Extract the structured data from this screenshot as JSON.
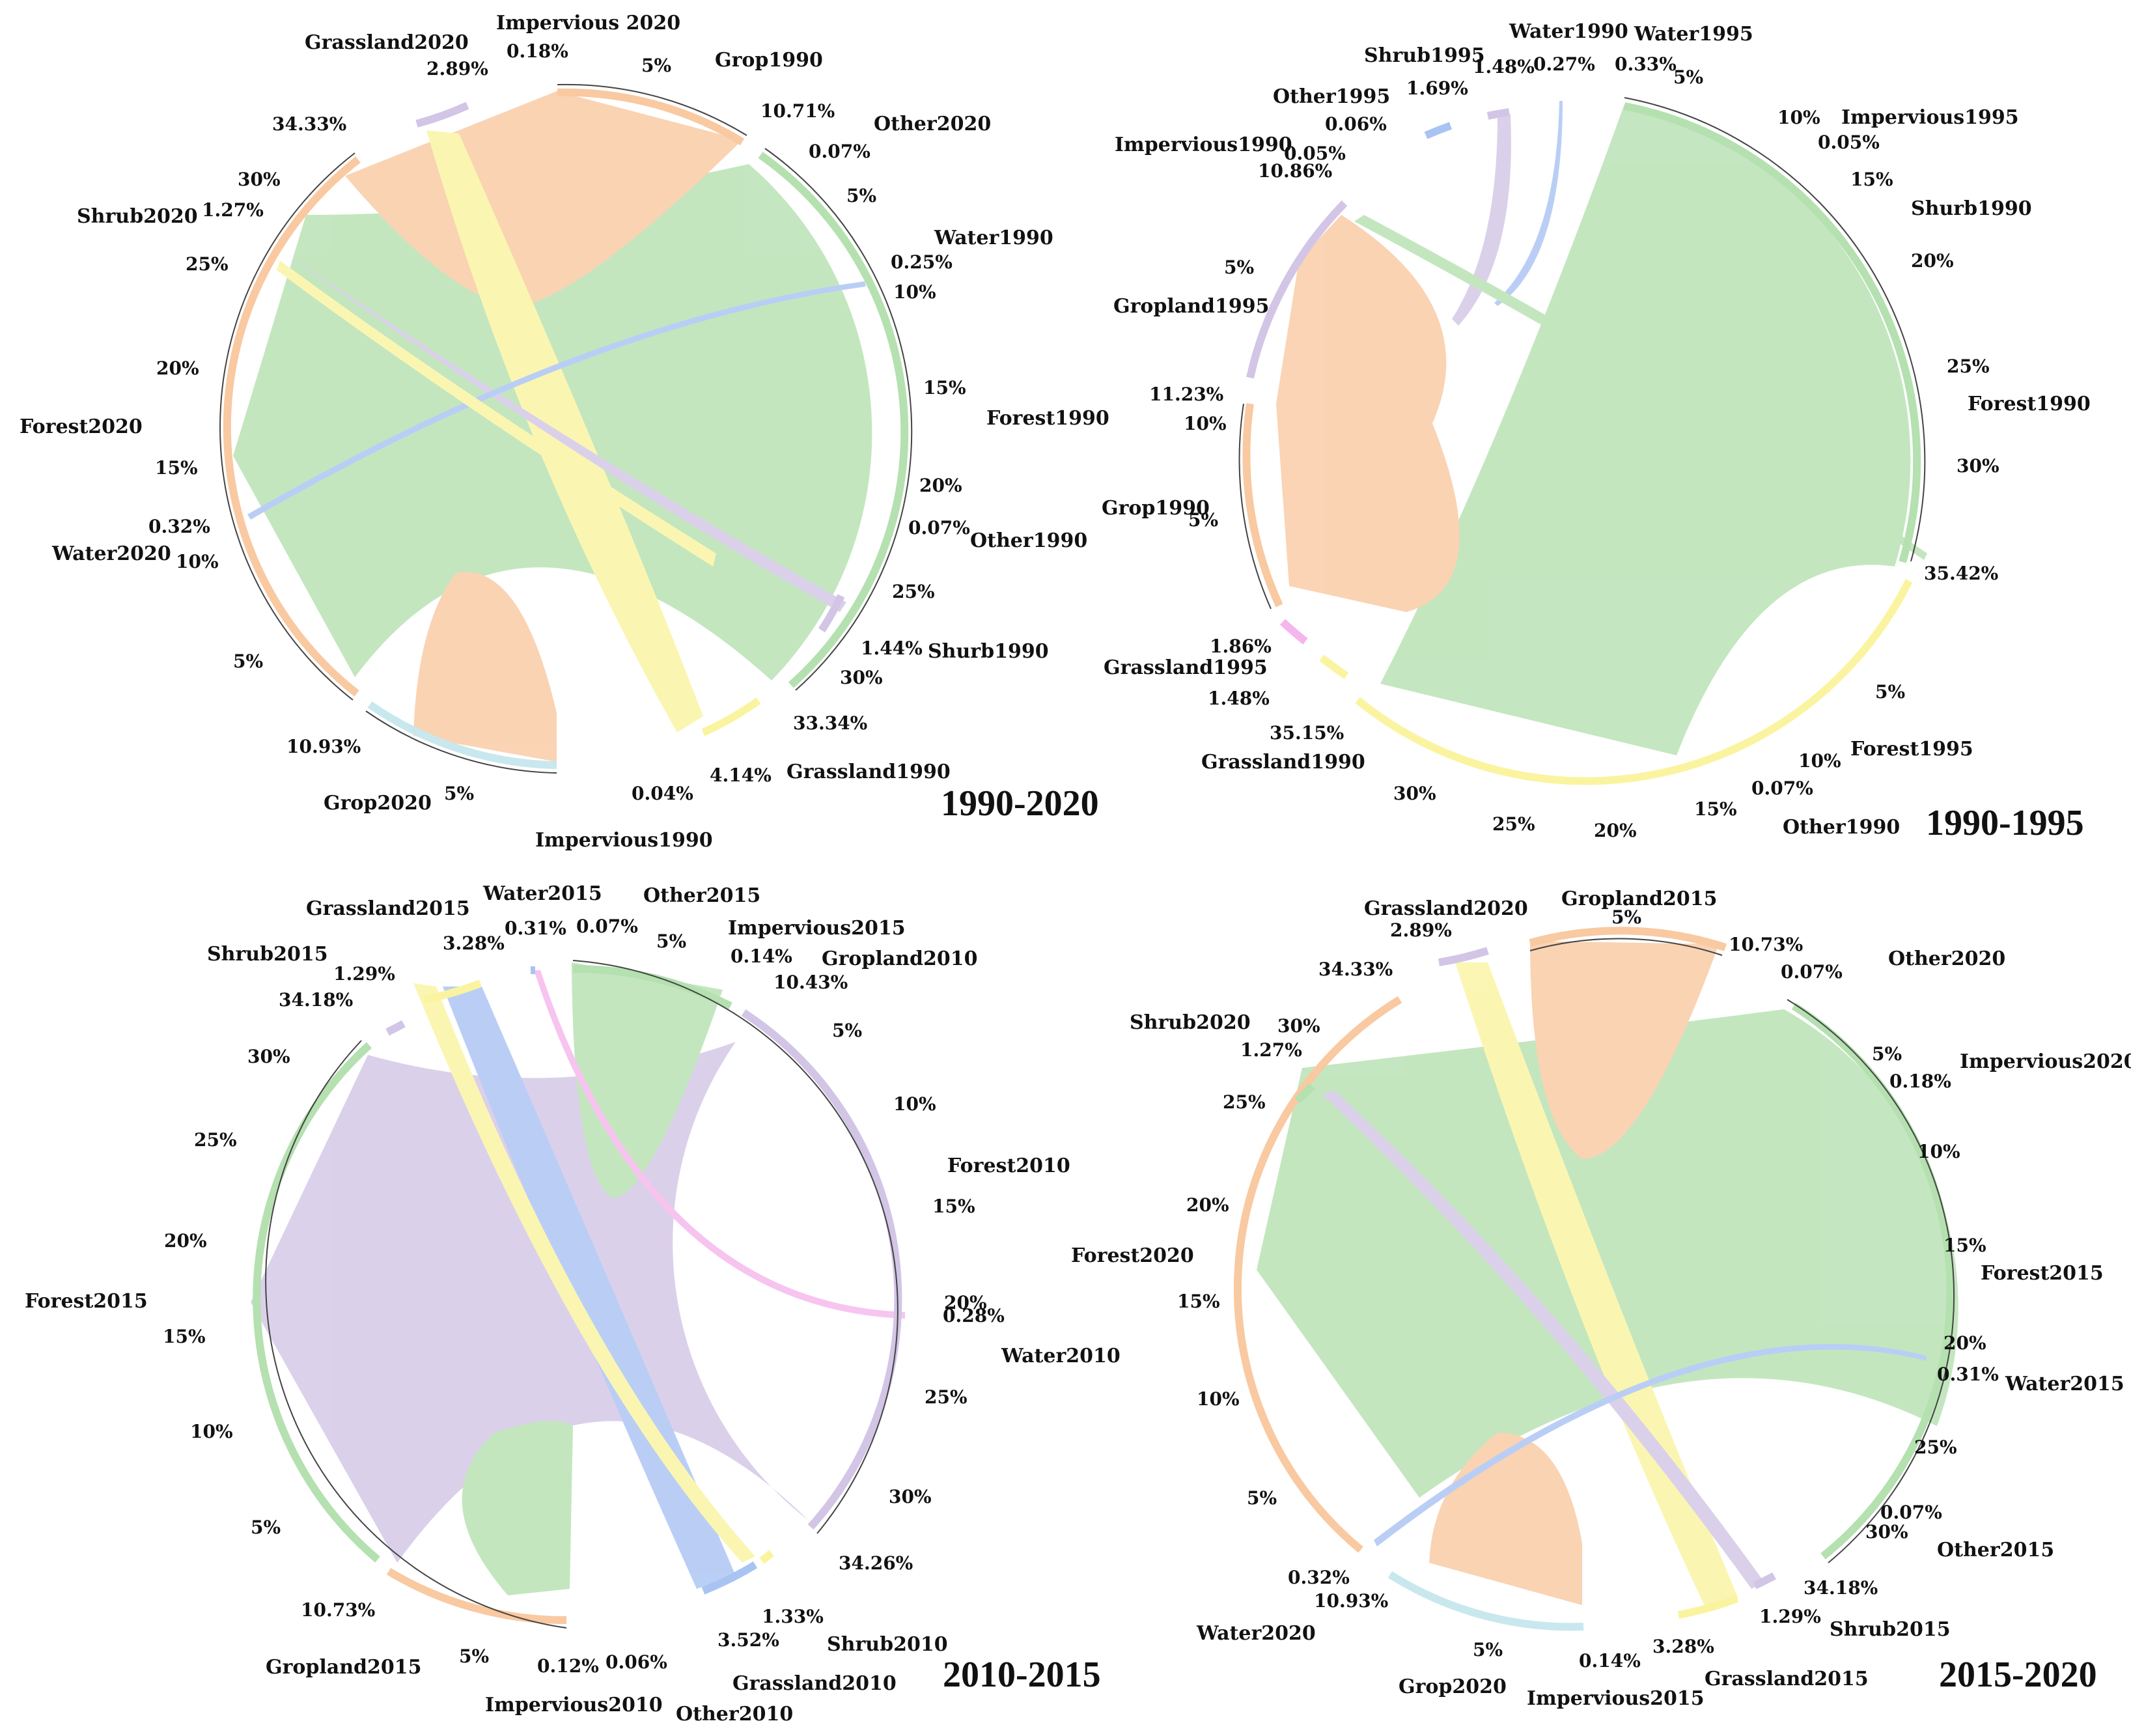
{
  "figure": "Land-use transfer chord diagrams",
  "colors": {
    "forest": "#b5e0b0",
    "crop": "#f9c9a1",
    "grass": "#faf4a0",
    "shrub": "#d3c5e6",
    "water": "#a9c3f3",
    "water_cyan": "#c8e8ee",
    "grass_pink": "#f4b6ec",
    "impervious": "#cfcfcf",
    "other": "#e6e6e6",
    "line": "#333333"
  },
  "chart_data": [
    {
      "type": "chord",
      "title": "1990-2020",
      "segments": [
        {
          "name": "Grop1990",
          "value": 10.71,
          "color": "crop",
          "side": "from"
        },
        {
          "name": "Other2020",
          "value": 0.07,
          "color": "other",
          "side": "to"
        },
        {
          "name": "Water1990",
          "value": 0.25,
          "color": "water",
          "side": "from"
        },
        {
          "name": "Forest1990",
          "value": 33.34,
          "color": "forest",
          "side": "from"
        },
        {
          "name": "Other1990",
          "value": 0.07,
          "color": "other",
          "side": "from"
        },
        {
          "name": "Shurb1990",
          "value": 1.44,
          "color": "shrub",
          "side": "from"
        },
        {
          "name": "Grassland1990",
          "value": 4.14,
          "color": "grass",
          "side": "from"
        },
        {
          "name": "Impervious1990",
          "value": 0.04,
          "color": "impervious",
          "side": "from"
        },
        {
          "name": "Grop2020",
          "value": 10.93,
          "color": "water_cyan",
          "side": "to"
        },
        {
          "name": "Water2020",
          "value": 0.32,
          "color": "water",
          "side": "to"
        },
        {
          "name": "Forest2020",
          "value": 34.33,
          "color": "crop",
          "side": "to"
        },
        {
          "name": "Shrub2020",
          "value": 1.27,
          "color": "shrub",
          "side": "to"
        },
        {
          "name": "Grassland2020",
          "value": 2.89,
          "color": "shrub",
          "side": "to"
        },
        {
          "name": "Impervious 2020",
          "value": 0.18,
          "color": "impervious",
          "side": "to"
        }
      ],
      "value_labels": [
        "10.71%",
        "0.07%",
        "0.25%",
        "0.07%",
        "1.44%",
        "33.34%",
        "4.14%",
        "0.04%",
        "10.93%",
        "0.32%",
        "34.33%",
        "1.27%",
        "2.89%",
        "0.18%"
      ],
      "tick_labels": [
        "5%",
        "10%",
        "15%",
        "20%",
        "25%",
        "30%"
      ]
    },
    {
      "type": "chord",
      "title": "1990-1995",
      "segments": [
        {
          "name": "Water1995",
          "value": 0.33,
          "color": "water",
          "side": "to"
        },
        {
          "name": "Impervious1995",
          "value": 0.05,
          "color": "impervious",
          "side": "to"
        },
        {
          "name": "Shurb1990",
          "value": 1.48,
          "color": "shrub",
          "side": "from"
        },
        {
          "name": "Forest1990",
          "value": 35.42,
          "color": "forest",
          "side": "from"
        },
        {
          "name": "Forest1995",
          "value": 35.15,
          "color": "grass",
          "side": "to"
        },
        {
          "name": "Other1990",
          "value": 0.07,
          "color": "other",
          "side": "from"
        },
        {
          "name": "Grassland1990",
          "value": 1.48,
          "color": "grass",
          "side": "from"
        },
        {
          "name": "Grassland1995",
          "value": 1.86,
          "color": "grass_pink",
          "side": "to"
        },
        {
          "name": "Grop1990",
          "value": 11.23,
          "color": "crop",
          "side": "from"
        },
        {
          "name": "Gropland1995",
          "value": 10.86,
          "color": "shrub",
          "side": "to"
        },
        {
          "name": "Impervious1990",
          "value": 0.05,
          "color": "impervious",
          "side": "from"
        },
        {
          "name": "Other1995",
          "value": 0.06,
          "color": "other",
          "side": "to"
        },
        {
          "name": "Shrub1995",
          "value": 1.69,
          "color": "water",
          "side": "to"
        },
        {
          "name": "Water1990",
          "value": 0.27,
          "color": "water",
          "side": "from"
        }
      ],
      "value_labels": [
        "0.33%",
        "0.05%",
        "1.48%",
        "35.42%",
        "0.07%",
        "35.15%",
        "1.48%",
        "1.86%",
        "11.23%",
        "10.86%",
        "0.05%",
        "0.06%",
        "1.69%",
        "0.27%"
      ],
      "tick_labels": [
        "5%",
        "10%",
        "15%",
        "20%",
        "25%",
        "30%"
      ]
    },
    {
      "type": "chord",
      "title": "2010-2015",
      "segments": [
        {
          "name": "Other2015",
          "value": 0.07,
          "color": "other",
          "side": "to"
        },
        {
          "name": "Impervious2015",
          "value": 0.14,
          "color": "impervious",
          "side": "to"
        },
        {
          "name": "Gropland2010",
          "value": 10.43,
          "color": "forest",
          "side": "from"
        },
        {
          "name": "Forest2010",
          "value": 34.26,
          "color": "shrub",
          "side": "from"
        },
        {
          "name": "Water2010",
          "value": 0.28,
          "color": "water",
          "side": "from"
        },
        {
          "name": "Shrub2010",
          "value": 1.33,
          "color": "grass",
          "side": "from"
        },
        {
          "name": "Grassland2010",
          "value": 3.52,
          "color": "water",
          "side": "from"
        },
        {
          "name": "Other2010",
          "value": 0.06,
          "color": "other",
          "side": "from"
        },
        {
          "name": "Impervious2010",
          "value": 0.12,
          "color": "impervious",
          "side": "from"
        },
        {
          "name": "Gropland2015",
          "value": 10.73,
          "color": "crop",
          "side": "to"
        },
        {
          "name": "Forest2015",
          "value": 34.18,
          "color": "forest",
          "side": "to"
        },
        {
          "name": "Shrub2015",
          "value": 1.29,
          "color": "shrub",
          "side": "to"
        },
        {
          "name": "Grassland2015",
          "value": 3.28,
          "color": "grass",
          "side": "to"
        },
        {
          "name": "Water2015",
          "value": 0.31,
          "color": "water",
          "side": "to"
        }
      ],
      "value_labels": [
        "0.07%",
        "0.14%",
        "10.43%",
        "34.26%",
        "0.28%",
        "1.33%",
        "3.52%",
        "0.06%",
        "0.12%",
        "10.73%",
        "34.18%",
        "1.29%",
        "3.28%",
        "0.31%"
      ],
      "tick_labels": [
        "5%",
        "10%",
        "15%",
        "20%",
        "25%",
        "30%"
      ]
    },
    {
      "type": "chord",
      "title": "2015-2020",
      "segments": [
        {
          "name": "Gropland2015",
          "value": 10.73,
          "color": "crop",
          "side": "from"
        },
        {
          "name": "Other2020",
          "value": 0.07,
          "color": "other",
          "side": "to"
        },
        {
          "name": "Impervious2020",
          "value": 0.18,
          "color": "impervious",
          "side": "to"
        },
        {
          "name": "Forest2015",
          "value": 34.18,
          "color": "forest",
          "side": "from"
        },
        {
          "name": "Water2015",
          "value": 0.31,
          "color": "water",
          "side": "from"
        },
        {
          "name": "Other2015",
          "value": 0.07,
          "color": "other",
          "side": "from"
        },
        {
          "name": "Shrub2015",
          "value": 1.29,
          "color": "shrub",
          "side": "from"
        },
        {
          "name": "Grassland2015",
          "value": 3.28,
          "color": "grass",
          "side": "from"
        },
        {
          "name": "Impervious2015",
          "value": 0.14,
          "color": "impervious",
          "side": "from"
        },
        {
          "name": "Grop2020",
          "value": 10.93,
          "color": "water_cyan",
          "side": "to"
        },
        {
          "name": "Water2020",
          "value": 0.32,
          "color": "water",
          "side": "to"
        },
        {
          "name": "Forest2020",
          "value": 34.33,
          "color": "crop",
          "side": "to"
        },
        {
          "name": "Shrub2020",
          "value": 1.27,
          "color": "forest",
          "side": "to"
        },
        {
          "name": "Grassland2020",
          "value": 2.89,
          "color": "shrub",
          "side": "to"
        }
      ],
      "value_labels": [
        "10.73%",
        "0.07%",
        "0.18%",
        "0.31%",
        "0.07%",
        "34.18%",
        "1.29%",
        "3.28%",
        "0.14%",
        "10.93%",
        "0.32%",
        "34.33%",
        "1.27%",
        "2.89%"
      ],
      "tick_labels": [
        "5%",
        "10%",
        "15%",
        "20%",
        "25%",
        "30%"
      ]
    }
  ]
}
